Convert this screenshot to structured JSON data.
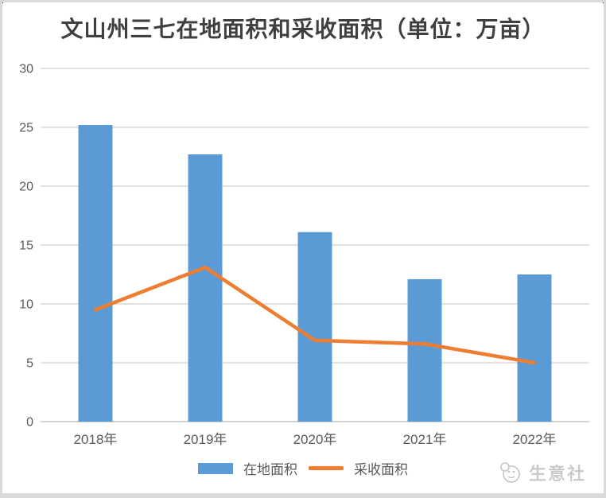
{
  "chart_data": {
    "type": "bar",
    "title": "文山州三七在地面积和采收面积（单位：万亩）",
    "categories": [
      "2018年",
      "2019年",
      "2020年",
      "2021年",
      "2022年"
    ],
    "series": [
      {
        "name": "在地面积",
        "render": "bar",
        "values": [
          25.2,
          22.7,
          16.1,
          12.1,
          12.5
        ]
      },
      {
        "name": "采收面积",
        "render": "line",
        "values": [
          9.5,
          13.1,
          6.9,
          6.6,
          5.0
        ]
      }
    ],
    "xlabel": "",
    "ylabel": "",
    "ylim": [
      0,
      30
    ],
    "ytick_step": 5,
    "yticks": [
      0,
      5,
      10,
      15,
      20,
      25,
      30
    ],
    "grid": true,
    "legend_position": "bottom"
  },
  "colors": {
    "bar": "#5b9bd5",
    "line": "#ed7d31",
    "grid": "#d9d9d9",
    "zero_line": "#c6c6c6",
    "axis_label": "#595959",
    "title": "#3f3f3f",
    "watermark": "#c9c9c9"
  },
  "watermark": {
    "text": "生意社",
    "icon": "sys-logo-icon"
  }
}
